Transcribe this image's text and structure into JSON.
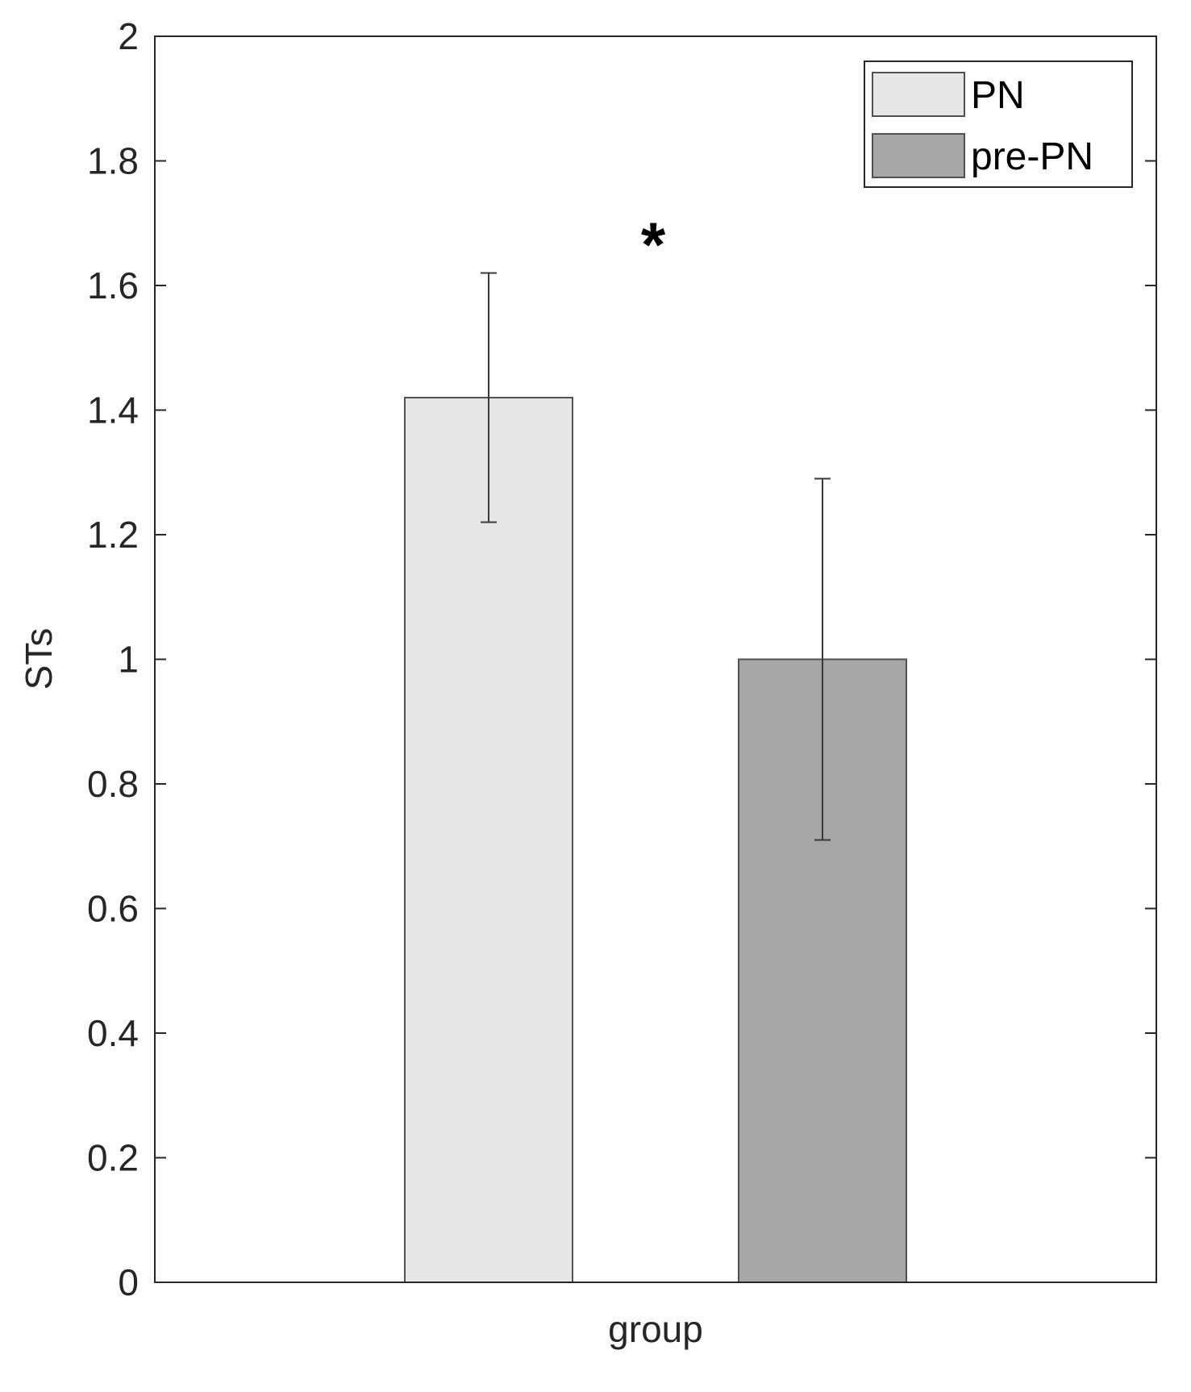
{
  "chart_data": {
    "type": "bar",
    "categories": [
      "group"
    ],
    "series": [
      {
        "name": "PN",
        "values": [
          1.42
        ],
        "error_low": [
          1.22
        ],
        "error_high": [
          1.62
        ],
        "color": "#e6e6e6"
      },
      {
        "name": "pre-PN",
        "values": [
          1.0
        ],
        "error_low": [
          0.71
        ],
        "error_high": [
          1.29
        ],
        "color": "#a6a6a6"
      }
    ],
    "xlabel": "group",
    "ylabel": "STs",
    "ylim": [
      0,
      2
    ],
    "yticks": [
      "0",
      "0.2",
      "0.4",
      "0.6",
      "0.8",
      "1",
      "1.2",
      "1.4",
      "1.6",
      "1.8",
      "2"
    ],
    "grid": false,
    "legend_position": "top-right",
    "annotations": [
      {
        "text": "*",
        "position": "above-bars-center"
      }
    ]
  },
  "colors": {
    "axis": "#262626",
    "bar_edge": "#505050",
    "error_bar": "#3a3a3a",
    "background": "#ffffff"
  }
}
